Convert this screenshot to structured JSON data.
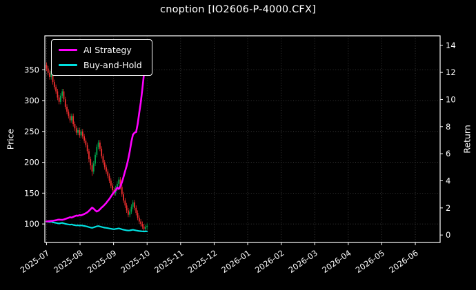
{
  "colors": {
    "background": "#000000",
    "text": "#ffffff",
    "grid": "#4a4a4a",
    "frame": "#ffffff",
    "up": "#00a94f",
    "down": "#ef2e2e",
    "strategy": "#ff00ff",
    "buyhold": "#00e0e0"
  },
  "legend": [
    {
      "label": "AI Strategy",
      "color_key": "strategy"
    },
    {
      "label": "Buy-and-Hold",
      "color_key": "buyhold"
    }
  ],
  "chart_data": {
    "type": "candlestick",
    "title": "cnoption [IO2606-P-4000.CFX]",
    "grid": "dotted",
    "legend_position": "upper-left",
    "x_axis": {
      "tick_labels": [
        "2025-07",
        "2025-08",
        "2025-09",
        "2025-10",
        "2025-11",
        "2025-12",
        "2026-01",
        "2026-02",
        "2026-03",
        "2026-04",
        "2026-05",
        "2026-06"
      ],
      "range_months": [
        -0.05,
        11.74
      ]
    },
    "left_axis": {
      "label": "Price",
      "ticks": [
        100,
        150,
        200,
        250,
        300,
        350
      ],
      "range": [
        70,
        405
      ]
    },
    "right_axis": {
      "label": "Return",
      "ticks": [
        0,
        2,
        4,
        6,
        8,
        10,
        12,
        14
      ],
      "range": [
        -0.55,
        14.7
      ]
    },
    "candles": {
      "axis": "left",
      "months_span": [
        0,
        3.0
      ],
      "ohlc": [
        [
          358,
          362,
          348,
          352
        ],
        [
          352,
          356,
          341,
          345
        ],
        [
          345,
          349,
          334,
          338
        ],
        [
          338,
          352,
          334,
          348
        ],
        [
          348,
          352,
          326,
          330
        ],
        [
          330,
          334,
          318,
          322
        ],
        [
          322,
          326,
          311,
          315
        ],
        [
          315,
          319,
          301,
          305
        ],
        [
          305,
          309,
          294,
          298
        ],
        [
          298,
          312,
          294,
          308
        ],
        [
          308,
          319,
          304,
          315
        ],
        [
          315,
          319,
          298,
          302
        ],
        [
          302,
          306,
          286,
          290
        ],
        [
          290,
          294,
          278,
          282
        ],
        [
          282,
          286,
          271,
          275
        ],
        [
          275,
          279,
          264,
          268
        ],
        [
          268,
          279,
          264,
          275
        ],
        [
          275,
          279,
          258,
          262
        ],
        [
          262,
          266,
          251,
          255
        ],
        [
          255,
          259,
          244,
          248
        ],
        [
          248,
          256,
          244,
          252
        ],
        [
          252,
          256,
          240,
          244
        ],
        [
          244,
          254,
          240,
          250
        ],
        [
          250,
          254,
          238,
          242
        ],
        [
          242,
          246,
          231,
          235
        ],
        [
          235,
          239,
          224,
          228
        ],
        [
          228,
          232,
          214,
          218
        ],
        [
          218,
          222,
          200,
          205
        ],
        [
          205,
          209,
          188,
          195
        ],
        [
          195,
          199,
          178,
          185
        ],
        [
          185,
          202,
          181,
          198
        ],
        [
          198,
          216,
          194,
          212
        ],
        [
          212,
          229,
          208,
          225
        ],
        [
          225,
          236,
          221,
          232
        ],
        [
          232,
          236,
          218,
          222
        ],
        [
          222,
          226,
          206,
          210
        ],
        [
          210,
          214,
          196,
          200
        ],
        [
          200,
          204,
          188,
          192
        ],
        [
          192,
          196,
          181,
          185
        ],
        [
          185,
          189,
          174,
          178
        ],
        [
          178,
          182,
          166,
          170
        ],
        [
          170,
          174,
          158,
          162
        ],
        [
          162,
          166,
          151,
          155
        ],
        [
          155,
          159,
          146,
          150
        ],
        [
          150,
          162,
          146,
          158
        ],
        [
          158,
          169,
          154,
          165
        ],
        [
          165,
          176,
          161,
          172
        ],
        [
          172,
          176,
          156,
          160
        ],
        [
          160,
          164,
          144,
          148
        ],
        [
          148,
          152,
          134,
          138
        ],
        [
          138,
          142,
          126,
          130
        ],
        [
          130,
          134,
          118,
          122
        ],
        [
          122,
          126,
          111,
          115
        ],
        [
          115,
          124,
          111,
          120
        ],
        [
          120,
          132,
          116,
          128
        ],
        [
          128,
          139,
          124,
          135
        ],
        [
          135,
          139,
          122,
          126
        ],
        [
          126,
          130,
          114,
          118
        ],
        [
          118,
          122,
          106,
          110
        ],
        [
          110,
          114,
          100,
          104
        ],
        [
          104,
          108,
          96,
          100
        ],
        [
          100,
          104,
          92,
          96
        ],
        [
          96,
          100,
          88,
          92
        ],
        [
          92,
          99,
          88,
          95
        ],
        [
          95,
          101,
          91,
          97
        ]
      ]
    },
    "series": [
      {
        "name": "Buy-and-Hold",
        "axis": "right",
        "color_key": "buyhold",
        "width": 2.2,
        "values": [
          1.0,
          0.98,
          0.96,
          0.989,
          0.938,
          0.915,
          0.895,
          0.867,
          0.847,
          0.875,
          0.895,
          0.858,
          0.824,
          0.801,
          0.781,
          0.761,
          0.781,
          0.744,
          0.724,
          0.705,
          0.716,
          0.693,
          0.71,
          0.688,
          0.668,
          0.648,
          0.619,
          0.582,
          0.554,
          0.526,
          0.563,
          0.602,
          0.639,
          0.659,
          0.631,
          0.597,
          0.568,
          0.545,
          0.526,
          0.506,
          0.483,
          0.46,
          0.44,
          0.426,
          0.449,
          0.469,
          0.489,
          0.455,
          0.42,
          0.392,
          0.369,
          0.347,
          0.327,
          0.341,
          0.364,
          0.384,
          0.358,
          0.335,
          0.313,
          0.295,
          0.284,
          0.273,
          0.261,
          0.27,
          0.276
        ]
      },
      {
        "name": "AI Strategy",
        "axis": "right",
        "color_key": "strategy",
        "width": 2.6,
        "values": [
          1.0,
          1.01,
          1.02,
          1.04,
          1.05,
          1.07,
          1.09,
          1.12,
          1.14,
          1.13,
          1.12,
          1.15,
          1.19,
          1.23,
          1.27,
          1.31,
          1.29,
          1.34,
          1.39,
          1.44,
          1.42,
          1.47,
          1.45,
          1.5,
          1.55,
          1.61,
          1.68,
          1.78,
          1.9,
          2.02,
          1.94,
          1.82,
          1.73,
          1.79,
          1.9,
          2.02,
          2.12,
          2.24,
          2.37,
          2.52,
          2.67,
          2.84,
          3.02,
          3.17,
          3.3,
          3.5,
          3.4,
          3.6,
          3.9,
          4.3,
          4.7,
          5.1,
          5.6,
          6.2,
          6.9,
          7.4,
          7.55,
          7.6,
          8.2,
          9.0,
          9.8,
          10.8,
          11.9,
          12.9,
          13.6
        ]
      }
    ]
  }
}
